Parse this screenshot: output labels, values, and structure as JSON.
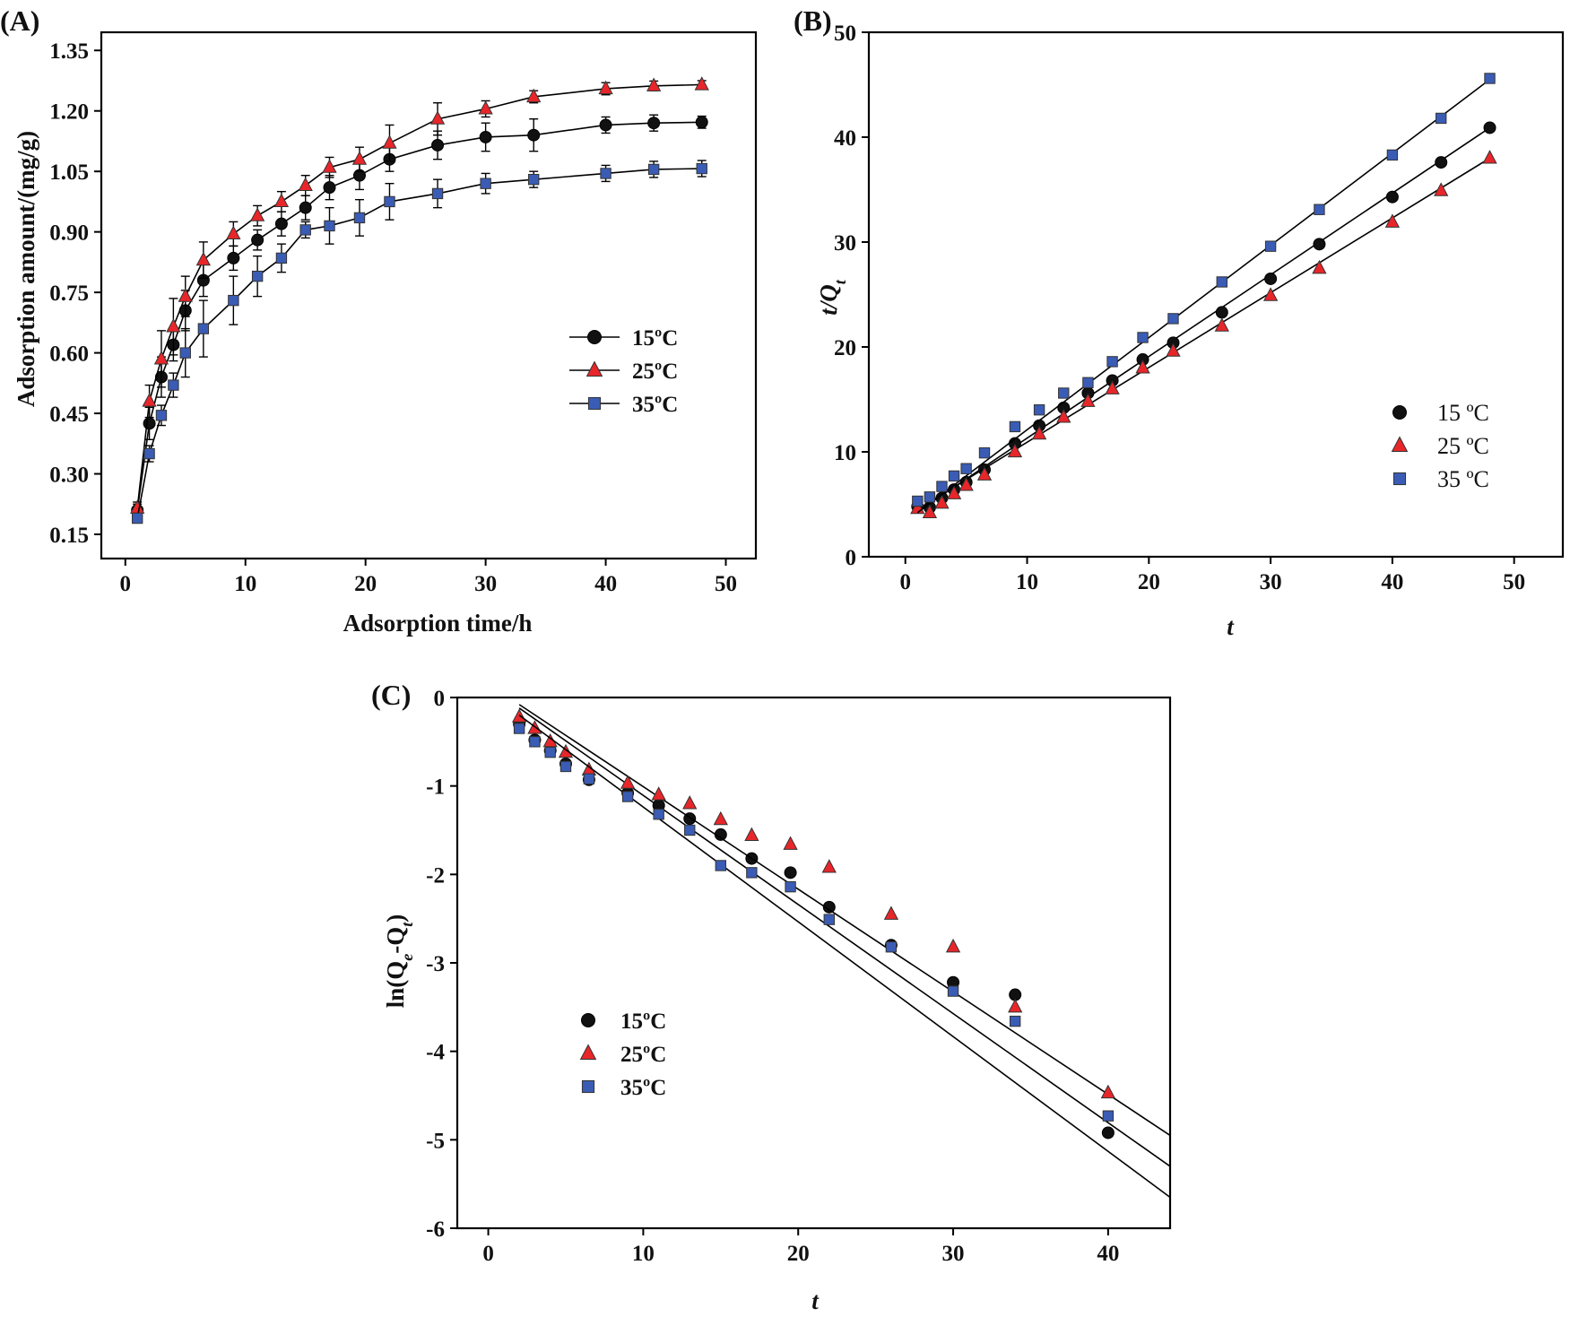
{
  "colors": {
    "15C": "#111111",
    "25C": "#e8262a",
    "35C": "#3a5cb5",
    "marker_stroke": "#333333",
    "axis": "#000000"
  },
  "chart_data": [
    {
      "panel": "(A)",
      "type": "line",
      "title": "",
      "xlabel": "Adsorption time/h",
      "ylabel": "Adsorption amount/(mg/g)",
      "xlim": [
        -2,
        52.5
      ],
      "ylim": [
        0.09,
        1.395
      ],
      "xticks": [
        "0",
        "10",
        "20",
        "30",
        "40",
        "50"
      ],
      "yticks": [
        "0.15",
        "0.30",
        "0.45",
        "0.60",
        "0.75",
        "0.90",
        "1.05",
        "1.20",
        "1.35"
      ],
      "legend_position": "center-right",
      "x": [
        1,
        2,
        3,
        4,
        5,
        6.5,
        9,
        11,
        13,
        15,
        17,
        19.5,
        22,
        26,
        30,
        34,
        40,
        44,
        48
      ],
      "series": [
        {
          "name": "15ºC",
          "marker": "circle",
          "values": [
            0.21,
            0.425,
            0.54,
            0.62,
            0.705,
            0.78,
            0.835,
            0.88,
            0.92,
            0.96,
            1.01,
            1.04,
            1.08,
            1.115,
            1.135,
            1.14,
            1.165,
            1.17,
            1.172
          ],
          "errors": [
            0.015,
            0.04,
            0.05,
            0.04,
            0.05,
            0.04,
            0.03,
            0.025,
            0.03,
            0.03,
            0.03,
            0.035,
            0.03,
            0.035,
            0.035,
            0.04,
            0.02,
            0.02,
            0.015
          ]
        },
        {
          "name": "25ºC",
          "marker": "triangle",
          "values": [
            0.215,
            0.48,
            0.585,
            0.665,
            0.74,
            0.83,
            0.895,
            0.94,
            0.975,
            1.015,
            1.06,
            1.08,
            1.12,
            1.18,
            1.205,
            1.235,
            1.255,
            1.262,
            1.265
          ],
          "errors": [
            0.015,
            0.04,
            0.07,
            0.07,
            0.05,
            0.045,
            0.03,
            0.025,
            0.025,
            0.025,
            0.025,
            0.03,
            0.045,
            0.04,
            0.02,
            0.015,
            0.015,
            0.012,
            0.01
          ]
        },
        {
          "name": "35ºC",
          "marker": "square",
          "values": [
            0.19,
            0.35,
            0.445,
            0.52,
            0.6,
            0.66,
            0.73,
            0.79,
            0.835,
            0.905,
            0.915,
            0.935,
            0.975,
            0.995,
            1.02,
            1.03,
            1.045,
            1.055,
            1.057
          ],
          "errors": [
            0.012,
            0.02,
            0.025,
            0.03,
            0.06,
            0.07,
            0.06,
            0.05,
            0.035,
            0.02,
            0.045,
            0.045,
            0.045,
            0.035,
            0.025,
            0.02,
            0.02,
            0.02,
            0.02
          ]
        }
      ]
    },
    {
      "panel": "(B)",
      "type": "scatter",
      "title": "",
      "xlabel": "t",
      "ylabel": "t/Q",
      "ylabel_sub": "t",
      "xlim": [
        -3,
        54
      ],
      "ylim": [
        0,
        50
      ],
      "xticks": [
        "0",
        "10",
        "20",
        "30",
        "40",
        "50"
      ],
      "yticks": [
        "0",
        "10",
        "20",
        "30",
        "40",
        "50"
      ],
      "legend_position": "right",
      "x": [
        1,
        2,
        3,
        4,
        5,
        6.5,
        9,
        11,
        13,
        15,
        17,
        19.5,
        22,
        26,
        30,
        34,
        40,
        44,
        48
      ],
      "series": [
        {
          "name": "15 ºC",
          "marker": "circle",
          "values": [
            4.8,
            4.7,
            5.6,
            6.4,
            7.1,
            8.3,
            10.8,
            12.5,
            14.2,
            15.6,
            16.8,
            18.8,
            20.4,
            23.3,
            26.5,
            29.8,
            34.3,
            37.6,
            40.9
          ],
          "fit": [
            4.3,
            40.9
          ]
        },
        {
          "name": "25 ºC",
          "marker": "triangle",
          "values": [
            4.6,
            4.2,
            5.1,
            6.0,
            6.8,
            7.8,
            10.0,
            11.7,
            13.3,
            14.8,
            16.0,
            18.0,
            19.6,
            22.0,
            24.9,
            27.5,
            31.9,
            34.9,
            38.0
          ],
          "fit": [
            4.5,
            38.0
          ]
        },
        {
          "name": "35 ºC",
          "marker": "square",
          "values": [
            5.3,
            5.7,
            6.7,
            7.7,
            8.4,
            9.9,
            12.4,
            14.0,
            15.6,
            16.6,
            18.6,
            20.9,
            22.7,
            26.2,
            29.6,
            33.1,
            38.3,
            41.8,
            45.6
          ],
          "fit": [
            4.2,
            45.5
          ]
        }
      ]
    },
    {
      "panel": "(C)",
      "type": "scatter",
      "title": "",
      "xlabel": "t",
      "ylabel": "ln(Q",
      "ylabel_sub1": "e",
      "ylabel_mid": "-Q",
      "ylabel_sub2": "t",
      "ylabel_end": ")",
      "xlim": [
        -2,
        44
      ],
      "ylim": [
        -6,
        0
      ],
      "xticks": [
        "0",
        "10",
        "20",
        "30",
        "40"
      ],
      "yticks": [
        "0",
        "-1",
        "-2",
        "-3",
        "-4",
        "-5",
        "-6"
      ],
      "legend_position": "lower-left",
      "x": [
        2,
        3,
        4,
        5,
        6.5,
        9,
        11,
        13,
        15,
        17,
        19.5,
        22,
        26,
        30,
        34,
        40
      ],
      "series": [
        {
          "name": "15ºC",
          "marker": "circle",
          "values": [
            -0.3,
            -0.48,
            -0.6,
            -0.75,
            -0.93,
            -1.08,
            -1.22,
            -1.37,
            -1.55,
            -1.82,
            -1.98,
            -2.37,
            -2.8,
            -3.22,
            -3.36,
            -4.92
          ],
          "fit": [
            [
              2,
              -0.12
            ],
            [
              44,
              -5.3
            ]
          ]
        },
        {
          "name": "25ºC",
          "marker": "triangle",
          "values": [
            -0.22,
            -0.35,
            -0.5,
            -0.62,
            -0.82,
            -0.97,
            -1.1,
            -1.2,
            -1.38,
            -1.56,
            -1.66,
            -1.92,
            -2.45,
            -2.82,
            -3.5,
            -4.47
          ],
          "fit": [
            [
              2,
              -0.08
            ],
            [
              44,
              -4.95
            ]
          ]
        },
        {
          "name": "35ºC",
          "marker": "square",
          "values": [
            -0.35,
            -0.5,
            -0.62,
            -0.78,
            -0.92,
            -1.12,
            -1.32,
            -1.5,
            -1.9,
            -1.98,
            -2.14,
            -2.51,
            -2.82,
            -3.32,
            -3.66,
            -4.73
          ],
          "fit": [
            [
              2,
              -0.2
            ],
            [
              44,
              -5.65
            ]
          ]
        }
      ]
    }
  ]
}
